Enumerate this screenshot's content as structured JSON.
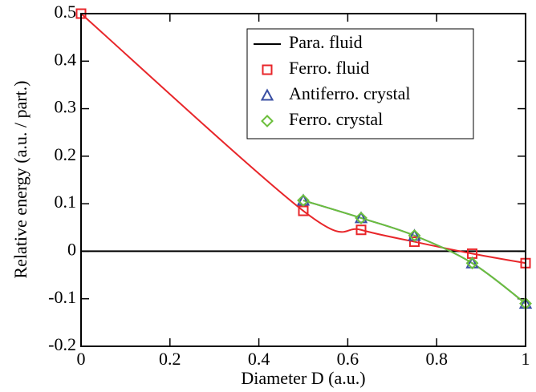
{
  "chart_data": {
    "type": "line",
    "xlabel": "Diameter D (a.u.)",
    "ylabel": "Relative energy (a.u. / part.)",
    "xlim": [
      0,
      1
    ],
    "xticks": [
      0,
      0.2,
      0.4,
      0.6,
      0.8,
      1
    ],
    "ylim": [
      -0.2,
      0.5
    ],
    "yticks": [
      -0.2,
      -0.1,
      0,
      0.1,
      0.2,
      0.3,
      0.4,
      0.5
    ],
    "legend": "upper right",
    "series": [
      {
        "name": "Para. fluid",
        "color": "#000000",
        "marker": "none",
        "line": true,
        "x": [
          0,
          1
        ],
        "values": [
          0,
          0
        ]
      },
      {
        "name": "Ferro. fluid",
        "color": "#e8262a",
        "marker": "square",
        "line": true,
        "x": [
          0,
          0.5,
          0.63,
          0.75,
          0.88,
          1
        ],
        "values": [
          0.5,
          0.085,
          0.045,
          0.02,
          -0.005,
          -0.025
        ]
      },
      {
        "name": "Antiferro. crystal",
        "color": "#3a4fa3",
        "marker": "triangle",
        "line": true,
        "x": [
          0.5,
          0.63,
          0.75,
          0.88,
          1
        ],
        "values": [
          0.107,
          0.07,
          0.033,
          -0.025,
          -0.11
        ]
      },
      {
        "name": "Ferro. crystal",
        "color": "#6cbf3c",
        "marker": "diamond",
        "line": true,
        "x": [
          0.5,
          0.63,
          0.75,
          0.88,
          1
        ],
        "values": [
          0.107,
          0.07,
          0.033,
          -0.025,
          -0.11
        ]
      }
    ]
  }
}
